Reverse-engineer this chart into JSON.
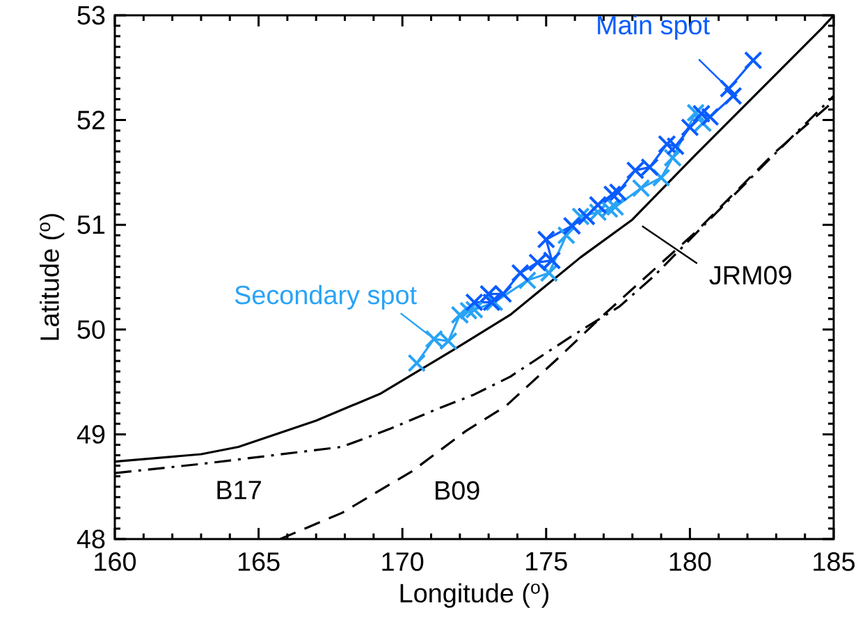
{
  "chart_data": {
    "type": "line",
    "xlabel": "Longitude ($^{o}$)",
    "ylabel": "Latitude ($^{o}$)",
    "xlim": [
      160,
      185
    ],
    "ylim": [
      48,
      53
    ],
    "xticks": [
      160,
      165,
      170,
      175,
      180,
      185
    ],
    "yticks": [
      48,
      49,
      50,
      51,
      52,
      53
    ],
    "series": [
      {
        "color": "#29a3f5",
        "marker": "cross",
        "line_style": "solid",
        "x": [
          170.5,
          171.1,
          171.6,
          172.0,
          172.3,
          172.5,
          173.2,
          174.35,
          175.1,
          175.7,
          176.2,
          176.8,
          177.2,
          177.4,
          178.3,
          179.0,
          179.4,
          180.2,
          180.45
        ],
        "values": [
          49.68,
          49.91,
          49.89,
          50.14,
          50.18,
          50.19,
          50.26,
          50.47,
          50.54,
          50.9,
          51.08,
          51.12,
          51.15,
          51.17,
          51.35,
          51.45,
          51.64,
          52.07,
          51.97
        ]
      },
      {
        "color": "#0a5cff",
        "marker": "cross",
        "line_style": "solid",
        "x": [
          172.5,
          173.1,
          173.0,
          173.5,
          174.1,
          174.7,
          175.2,
          175.0,
          175.9,
          176.4,
          176.8,
          177.3,
          177.5,
          178.1,
          178.6,
          179.2,
          179.5,
          180.0,
          180.4,
          180.7,
          181.5,
          181.35,
          182.2
        ],
        "values": [
          50.26,
          50.26,
          50.34,
          50.34,
          50.54,
          50.64,
          50.66,
          50.86,
          50.99,
          51.08,
          51.19,
          51.29,
          51.31,
          51.52,
          51.55,
          51.77,
          51.75,
          51.93,
          52.06,
          52.03,
          52.23,
          52.3,
          52.57
        ]
      },
      {
        "color": "#000000",
        "marker": "none",
        "line_style": "solid",
        "x": [
          160.0,
          163.0,
          164.3,
          167.0,
          169.25,
          171.8,
          173.75,
          176.2,
          178.0,
          180.2,
          184.6,
          185.0
        ],
        "values": [
          48.74,
          48.81,
          48.88,
          49.13,
          49.39,
          49.81,
          50.14,
          50.69,
          51.05,
          51.67,
          52.88,
          53.0
        ]
      },
      {
        "color": "#000000",
        "marker": "none",
        "line_style": "dashdot",
        "x": [
          160.0,
          163.1,
          167.9,
          169.55,
          171.2,
          172.5,
          173.75,
          175.85,
          177.55,
          178.75,
          180.5,
          183.0,
          185.0
        ],
        "values": [
          48.63,
          48.72,
          48.88,
          49.05,
          49.24,
          49.38,
          49.55,
          49.93,
          50.22,
          50.51,
          51.0,
          51.69,
          52.23
        ]
      },
      {
        "color": "#000000",
        "marker": "none",
        "line_style": "dashed",
        "x": [
          165.75,
          167.9,
          170.35,
          172.2,
          173.6,
          175.35,
          177.0,
          180.2,
          182.95,
          185.0
        ],
        "values": [
          48.0,
          48.25,
          48.65,
          49.03,
          49.27,
          49.71,
          50.14,
          50.93,
          51.69,
          52.18
        ]
      }
    ],
    "annotations": [
      "Main spot",
      "Secondary spot",
      "JRM09",
      "B17",
      "B09"
    ]
  }
}
